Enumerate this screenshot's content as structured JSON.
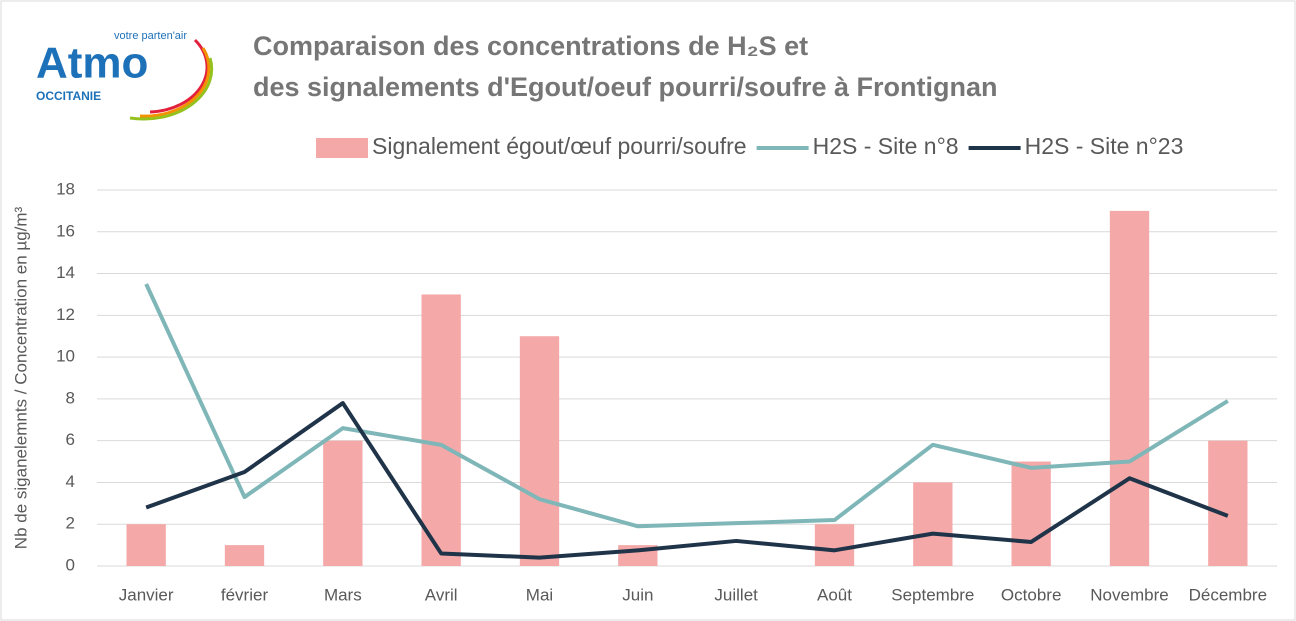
{
  "chart_data": {
    "type": "bar_line",
    "logo": {
      "name": "Atmo",
      "tagline": "votre parten'air",
      "region": "OCCITANIE"
    },
    "title": [
      "Comparaison des concentrations de H₂S et",
      "des signalements d'Egout/oeuf pourri/soufre à Frontignan"
    ],
    "y_label": "Nb de siganelemnts / Concentration en µg/m³",
    "categories": [
      "Janvier",
      "février",
      "Mars",
      "Avril",
      "Mai",
      "Juin",
      "Juillet",
      "Août",
      "Septembre",
      "Octobre",
      "Novembre",
      "Décembre"
    ],
    "series": [
      {
        "name": "Signalement égout/œuf pourri/soufre",
        "kind": "bar",
        "color": "#f4a9a8",
        "values": [
          2,
          1,
          6,
          13,
          11,
          1,
          0,
          2,
          4,
          5,
          17,
          6
        ]
      },
      {
        "name": "H2S - Site n°8",
        "kind": "line",
        "color": "#7fb6b8",
        "values": [
          13.5,
          3.3,
          6.6,
          5.8,
          3.2,
          1.9,
          2.05,
          2.2,
          5.8,
          4.7,
          5.0,
          7.9
        ]
      },
      {
        "name": "H2S - Site n°23",
        "kind": "line",
        "color": "#1f3349",
        "values": [
          2.8,
          4.5,
          7.8,
          0.6,
          0.4,
          0.75,
          1.2,
          0.75,
          1.55,
          1.15,
          4.2,
          2.4
        ]
      }
    ],
    "ylim": [
      0,
      18
    ],
    "yticks": [
      0,
      2,
      4,
      6,
      8,
      10,
      12,
      14,
      16,
      18
    ],
    "grid": true,
    "legend": "top"
  }
}
